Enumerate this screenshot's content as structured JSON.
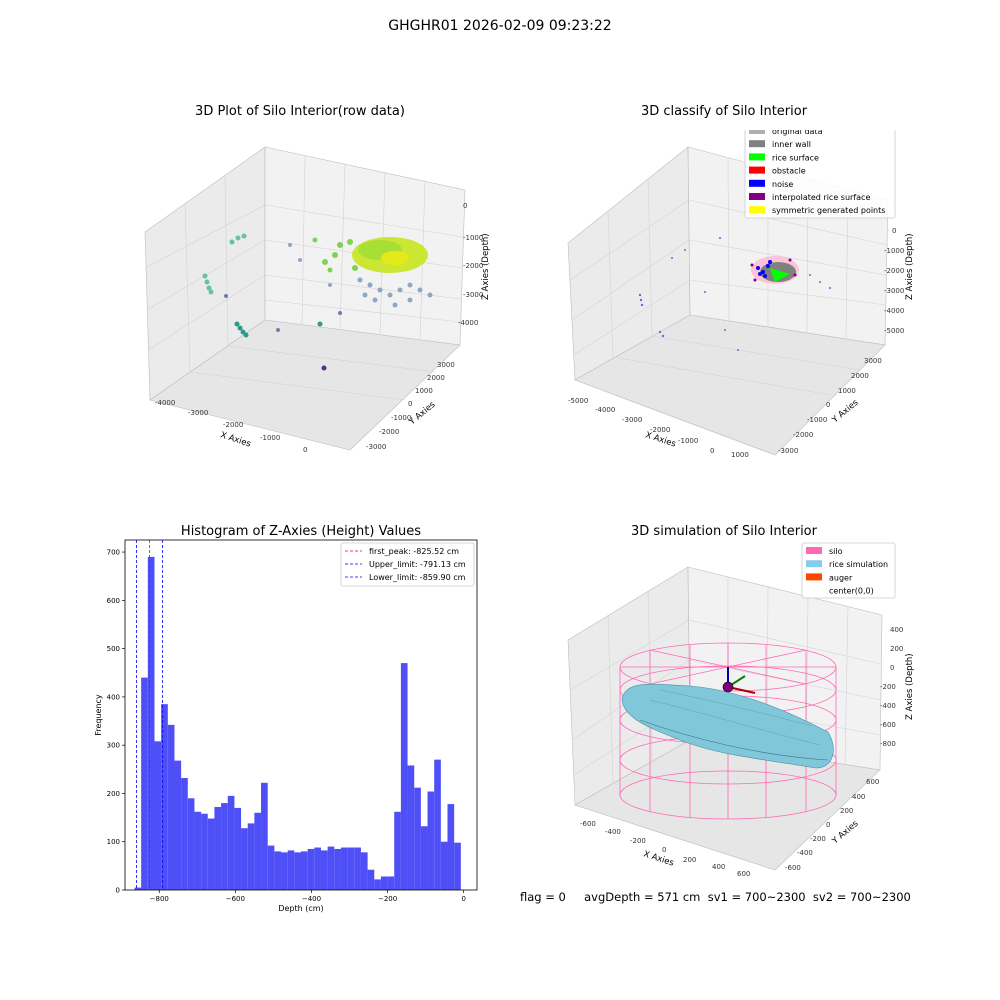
{
  "page": {
    "suptitle": "GHGHR01 2026-02-09 09:23:22",
    "footer": "flag = 0     avgDepth = 571 cm  sv1 = 700~2300  sv2 = 700~2300"
  },
  "panels": {
    "raw": {
      "title": "3D Plot of Silo Interior(row data)",
      "xlabel": "X Axies",
      "ylabel": "Y Axies",
      "zlabel": "Z Axies (Depth)",
      "xticks": [
        "-4000",
        "-3000",
        "-2000",
        "-1000",
        "0"
      ],
      "yticks": [
        "-3000",
        "-2000",
        "-1000",
        "0",
        "1000",
        "2000",
        "3000"
      ],
      "zticks": [
        "0",
        "-1000",
        "-2000",
        "-3000",
        "-4000"
      ]
    },
    "classify": {
      "title": "3D classify of Silo Interior",
      "xlabel": "X Axies",
      "ylabel": "Y Axies",
      "zlabel": "Z Axies (Depth)",
      "xticks": [
        "-5000",
        "-4000",
        "-3000",
        "-2000",
        "-1000",
        "0",
        "1000"
      ],
      "yticks": [
        "-3000",
        "-2000",
        "-1000",
        "0",
        "1000",
        "2000",
        "3000"
      ],
      "zticks": [
        "0",
        "-1000",
        "-2000",
        "-3000",
        "-4000",
        "-5000"
      ],
      "legend": [
        {
          "label": "original data",
          "color": "#b0b0b0"
        },
        {
          "label": "inner wall",
          "color": "#808080"
        },
        {
          "label": "rice surface",
          "color": "#00ff00"
        },
        {
          "label": "obstacle",
          "color": "#ff0000"
        },
        {
          "label": "noise",
          "color": "#0000ff"
        },
        {
          "label": "interpolated rice surface",
          "color": "#800080"
        },
        {
          "label": "symmetric generated points",
          "color": "#ffff00"
        }
      ]
    },
    "simulation": {
      "title": "3D simulation of Silo Interior",
      "xlabel": "X Axies",
      "ylabel": "Y Axies",
      "zlabel": "Z Axies (Depth)",
      "xticks": [
        "-600",
        "-400",
        "-200",
        "0",
        "200",
        "400",
        "600"
      ],
      "yticks": [
        "-600",
        "-400",
        "-200",
        "0",
        "200",
        "400",
        "600"
      ],
      "zticks": [
        "400",
        "200",
        "0",
        "-200",
        "-400",
        "-600",
        "-800"
      ],
      "legend": [
        {
          "label": "silo",
          "color": "#ff69b4"
        },
        {
          "label": "rice simulation",
          "color": "#87ceeb"
        },
        {
          "label": "auger",
          "color": "#ff4500"
        },
        {
          "label": "center(0,0)",
          "color": "#ffffff"
        }
      ]
    }
  },
  "chart_data": {
    "type": "bar",
    "title": "Histogram of Z-Axies (Height) Values",
    "xlabel": "Depth (cm)",
    "ylabel": "Frequency",
    "xlim": [
      -890,
      35
    ],
    "ylim": [
      0,
      725
    ],
    "xticks": [
      -800,
      -600,
      -400,
      -200,
      0
    ],
    "yticks": [
      0,
      100,
      200,
      300,
      400,
      500,
      600,
      700
    ],
    "bin_width": 17.5,
    "bins_start": -865,
    "values": [
      5,
      440,
      690,
      308,
      385,
      342,
      268,
      232,
      190,
      162,
      158,
      148,
      172,
      180,
      195,
      170,
      128,
      138,
      160,
      222,
      92,
      80,
      78,
      82,
      78,
      80,
      85,
      88,
      82,
      90,
      85,
      88,
      88,
      88,
      78,
      42,
      22,
      28,
      28,
      162,
      470,
      258,
      212,
      132,
      204,
      270,
      100,
      178,
      98
    ],
    "lines": [
      {
        "label": "first_peak: -825.52 cm",
        "value": -825.52,
        "color": "#ff0000"
      },
      {
        "label": "Upper_limit: -791.13 cm",
        "value": -791.13,
        "color": "#0000ff"
      },
      {
        "label": "Lower_limit: -859.90 cm",
        "value": -859.9,
        "color": "#0000ff"
      }
    ],
    "bar_color": "#4f4ff7",
    "grid": false,
    "legend_position": "top-right"
  }
}
